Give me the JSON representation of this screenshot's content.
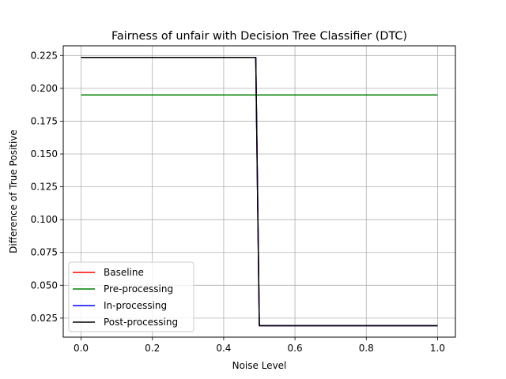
{
  "chart_data": {
    "type": "line",
    "title": "Fairness of unfair with Decision Tree Classifier (DTC)",
    "xlabel": "Noise Level",
    "ylabel": "Difference of True Positive",
    "xlim": [
      -0.05,
      1.05
    ],
    "ylim": [
      0.0105,
      0.2324
    ],
    "xticks": [
      0.0,
      0.2,
      0.4,
      0.6,
      0.8,
      1.0
    ],
    "xtick_labels": [
      "0.0",
      "0.2",
      "0.4",
      "0.6",
      "0.8",
      "1.0"
    ],
    "yticks": [
      0.025,
      0.05,
      0.075,
      0.1,
      0.125,
      0.15,
      0.175,
      0.2,
      0.225
    ],
    "ytick_labels": [
      "0.025",
      "0.050",
      "0.075",
      "0.100",
      "0.125",
      "0.150",
      "0.175",
      "0.200",
      "0.225"
    ],
    "grid": true,
    "legend_position": "lower-left",
    "series": [
      {
        "name": "Baseline",
        "color": "#ff0000",
        "x": [
          0.0,
          0.49,
          0.5,
          1.0
        ],
        "y": [
          0.2235,
          0.2235,
          0.0192,
          0.0192
        ]
      },
      {
        "name": "Pre-processing",
        "color": "#008000",
        "x": [
          0.0,
          1.0
        ],
        "y": [
          0.195,
          0.195
        ]
      },
      {
        "name": "In-processing",
        "color": "#0000ff",
        "x": [
          0.0,
          0.49,
          0.5,
          1.0
        ],
        "y": [
          0.2235,
          0.2235,
          0.0192,
          0.0192
        ]
      },
      {
        "name": "Post-processing",
        "color": "#000000",
        "x": [
          0.0,
          0.49,
          0.5,
          1.0
        ],
        "y": [
          0.2235,
          0.2235,
          0.0192,
          0.0192
        ]
      }
    ]
  }
}
